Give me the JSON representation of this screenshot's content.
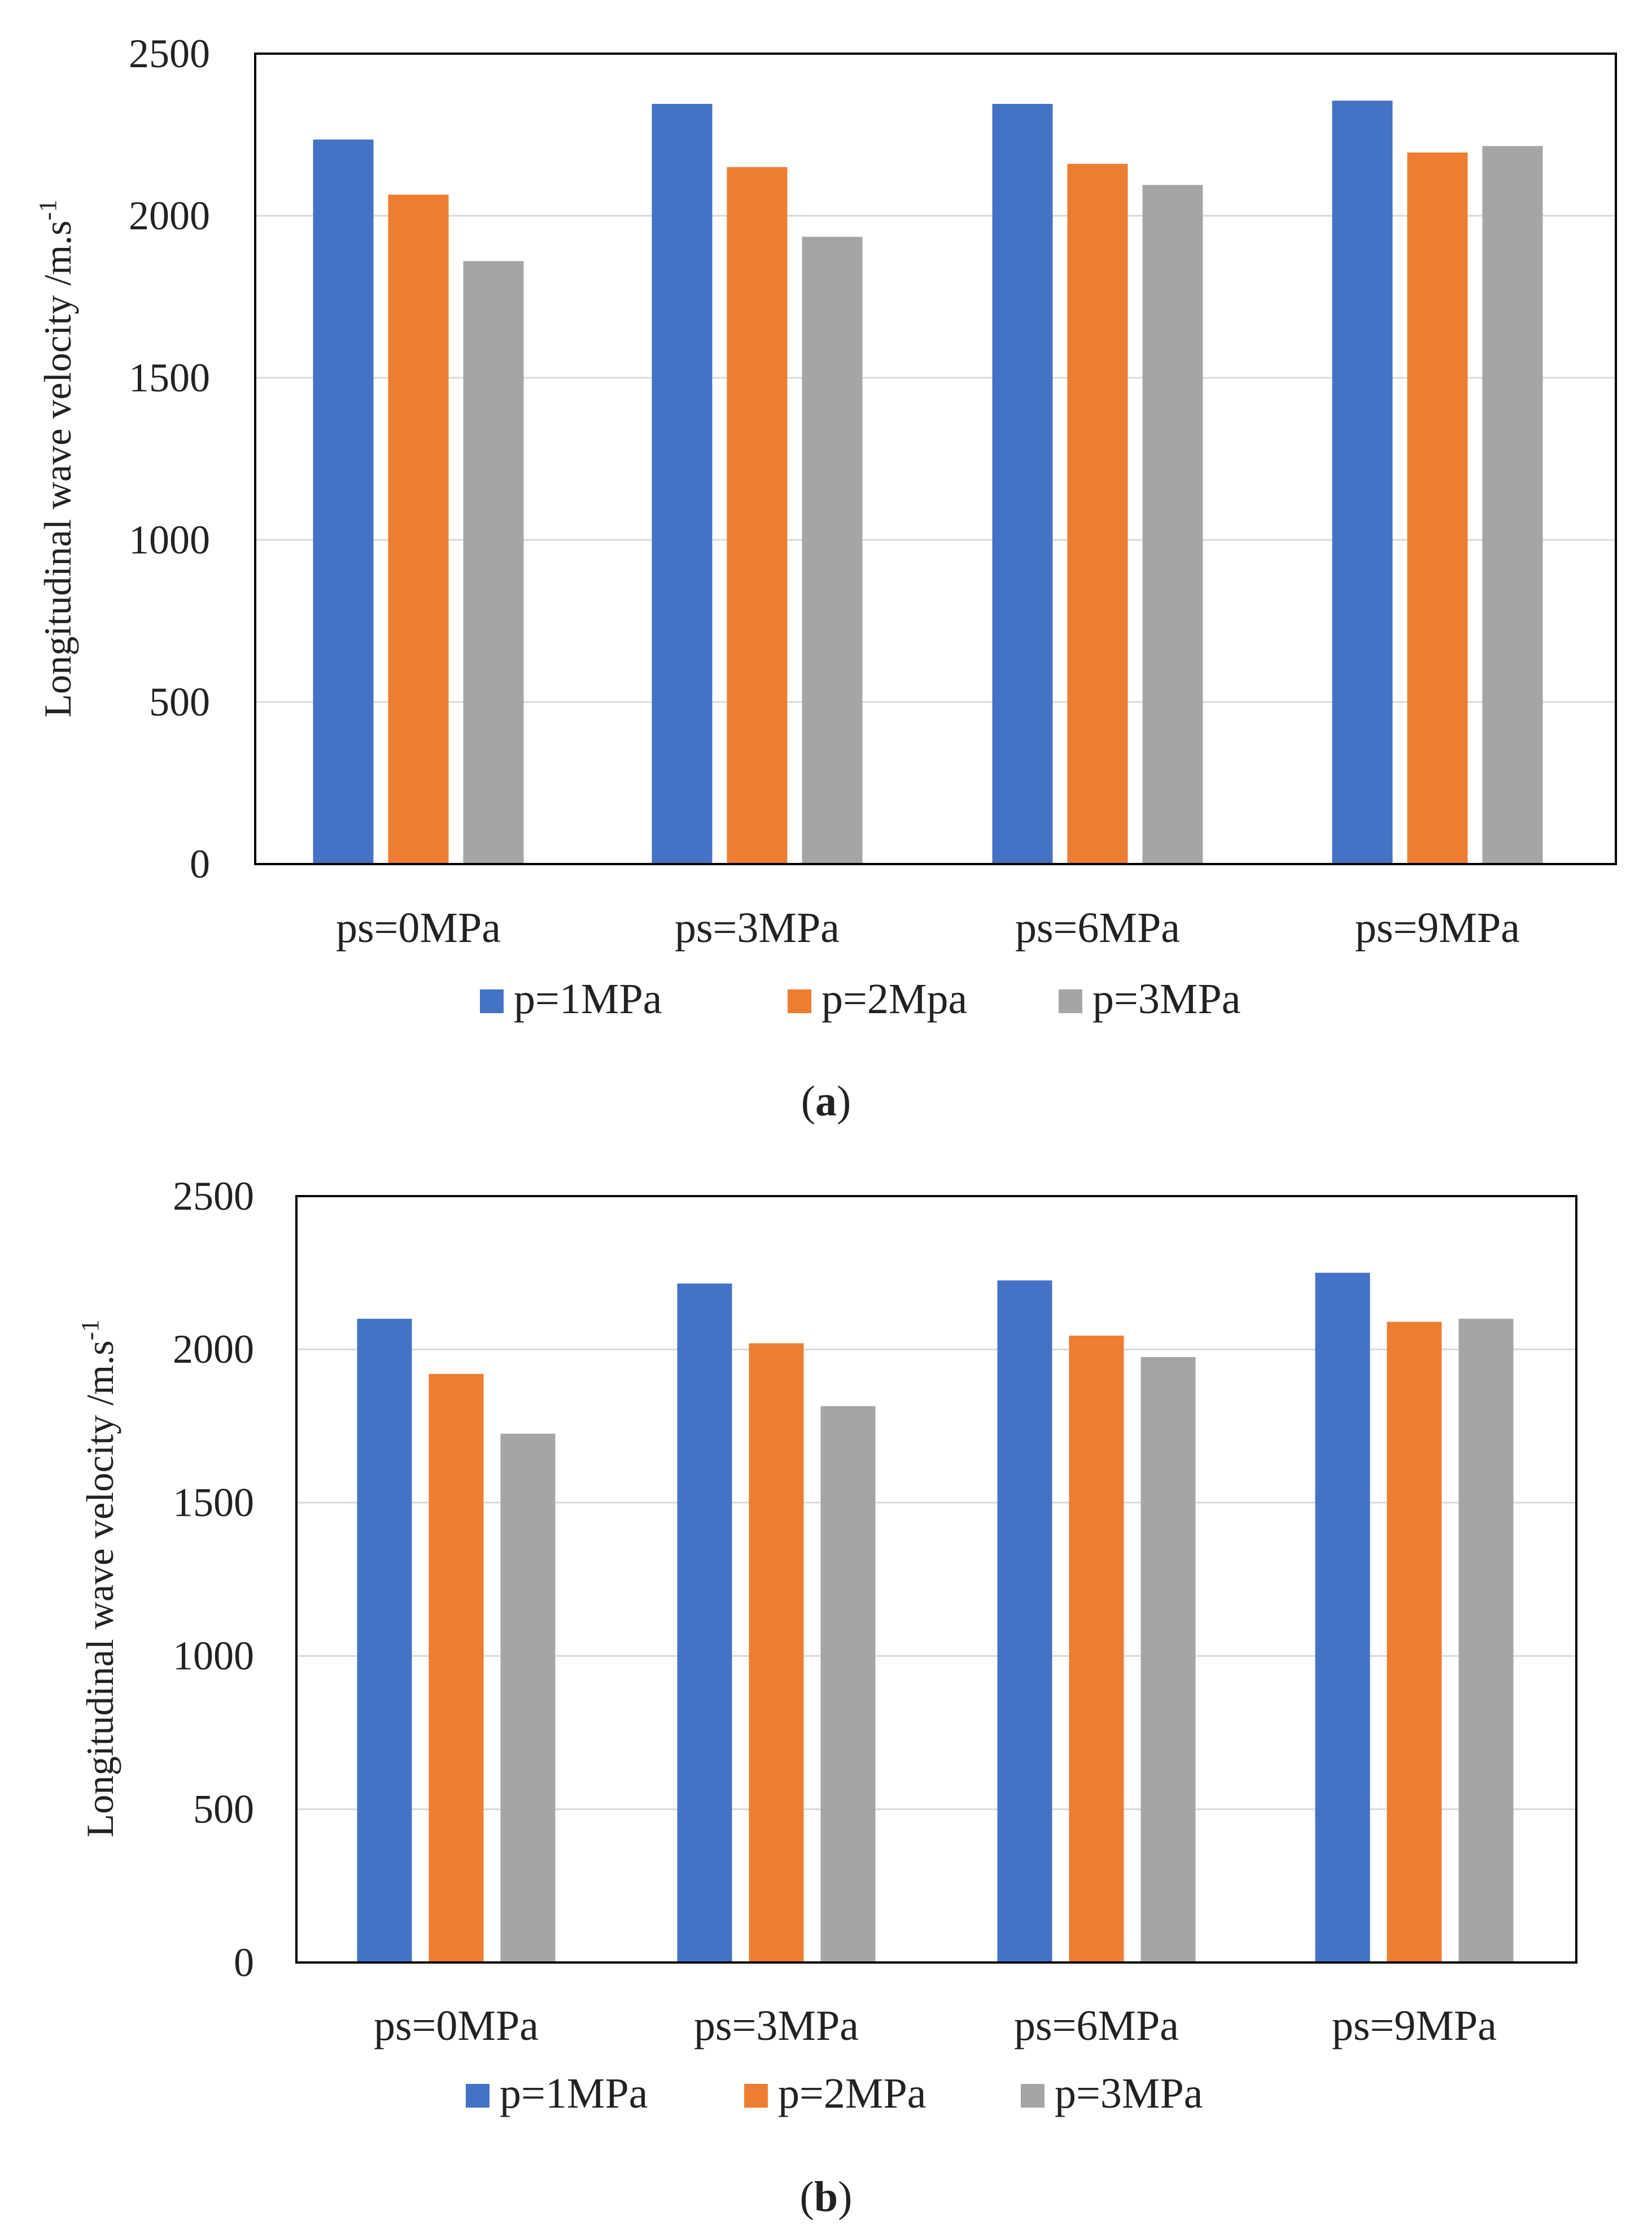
{
  "colors": {
    "p1": "#4472C4",
    "p2": "#ED7D31",
    "p3": "#A5A5A5",
    "grid": "#D9D9D9",
    "frame": "#000000",
    "text": "#222222"
  },
  "chart_data": [
    {
      "type": "bar",
      "panel_label": "a",
      "title": "",
      "xlabel": "",
      "ylabel": "Longitudinal wave velocity /m.s",
      "ylabel_superscript": "-1",
      "ylim": [
        0,
        2500
      ],
      "yticks": [
        "0",
        "500",
        "1000",
        "1500",
        "2000",
        "2500"
      ],
      "grid": true,
      "legend_position": "bottom",
      "categories": [
        "ps=0MPa",
        "ps=3MPa",
        "ps=6MPa",
        "ps=9MPa"
      ],
      "series": [
        {
          "name": "p=1MPa",
          "color": "#4472C4",
          "values": [
            2235,
            2345,
            2345,
            2355
          ]
        },
        {
          "name": "p=2Mpa",
          "color": "#ED7D31",
          "values": [
            2065,
            2150,
            2160,
            2195
          ]
        },
        {
          "name": "p=3MPa",
          "color": "#A5A5A5",
          "values": [
            1860,
            1935,
            2095,
            2215
          ]
        }
      ]
    },
    {
      "type": "bar",
      "panel_label": "b",
      "title": "",
      "xlabel": "",
      "ylabel": "Longitudinal wave velocity /m.s",
      "ylabel_superscript": "-1",
      "ylim": [
        0,
        2500
      ],
      "yticks": [
        "0",
        "500",
        "1000",
        "1500",
        "2000",
        "2500"
      ],
      "grid": true,
      "legend_position": "bottom",
      "categories": [
        "ps=0MPa",
        "ps=3MPa",
        "ps=6MPa",
        "ps=9MPa"
      ],
      "series": [
        {
          "name": "p=1MPa",
          "color": "#4472C4",
          "values": [
            2100,
            2215,
            2225,
            2250
          ]
        },
        {
          "name": "p=2MPa",
          "color": "#ED7D31",
          "values": [
            1920,
            2020,
            2045,
            2090
          ]
        },
        {
          "name": "p=3MPa",
          "color": "#A5A5A5",
          "values": [
            1725,
            1815,
            1975,
            2100
          ]
        }
      ]
    }
  ]
}
